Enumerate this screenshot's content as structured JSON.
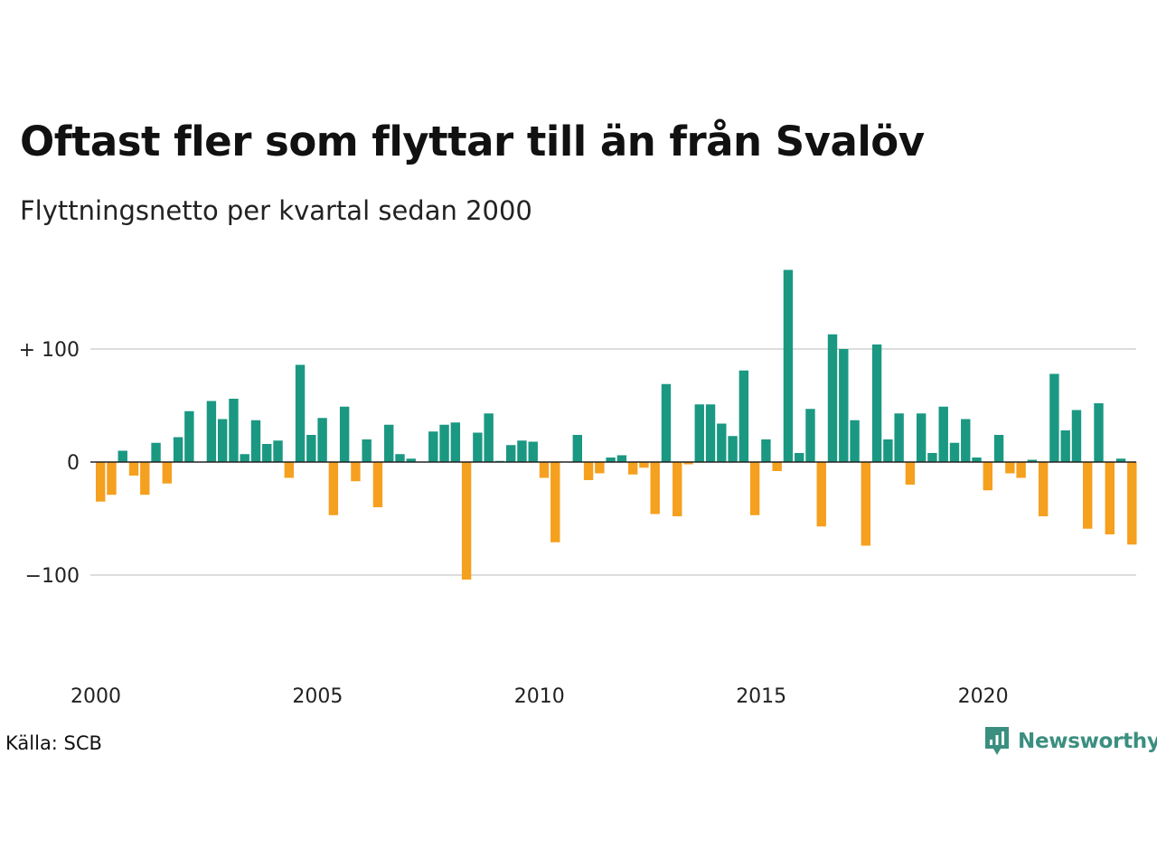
{
  "title": "Oftast fler som flyttar till än från Svalöv",
  "subtitle": "Flyttningsnetto per kvartal sedan 2000",
  "source": "Källa: SCB",
  "brand": "Newsworthy",
  "colors": {
    "positive": "#1a9882",
    "negative": "#f5a01e",
    "grid": "#dddddd",
    "baseline": "#222222",
    "brand": "#3b8f80"
  },
  "chart_data": {
    "type": "bar",
    "title": "Oftast fler som flyttar till än från Svalöv",
    "subtitle": "Flyttningsnetto per kvartal sedan 2000",
    "xlabel": "",
    "ylabel": "",
    "ylim": [
      -155,
      170
    ],
    "yticks": [
      {
        "value": 100,
        "label": "+ 100"
      },
      {
        "value": 0,
        "label": "0"
      },
      {
        "value": -100,
        "label": "−100"
      }
    ],
    "xticks": [
      {
        "label": "2000",
        "index": 0
      },
      {
        "label": "2005",
        "index": 20
      },
      {
        "label": "2010",
        "index": 40
      },
      {
        "label": "2015",
        "index": 60
      },
      {
        "label": "2020",
        "index": 80
      }
    ],
    "grid": true,
    "start": "2000 Q1",
    "values": [
      -35,
      -29,
      10,
      -12,
      -29,
      17,
      -19,
      22,
      45,
      0,
      54,
      38,
      56,
      7,
      37,
      16,
      19,
      -14,
      86,
      24,
      39,
      -47,
      49,
      -17,
      20,
      -40,
      33,
      7,
      3,
      0,
      27,
      33,
      35,
      -104,
      26,
      43,
      1,
      15,
      19,
      18,
      -14,
      -71,
      0,
      24,
      -16,
      -10,
      4,
      6,
      -11,
      -5,
      -46,
      69,
      -48,
      -2,
      51,
      51,
      34,
      23,
      81,
      -47,
      20,
      -8,
      170,
      8,
      47,
      -57,
      113,
      100,
      37,
      -74,
      104,
      20,
      43,
      -20,
      43,
      8,
      49,
      17,
      38,
      4,
      -25,
      24,
      -10,
      -14,
      2,
      -48,
      78,
      28,
      46,
      -59,
      52,
      -64,
      3,
      -73
    ]
  }
}
